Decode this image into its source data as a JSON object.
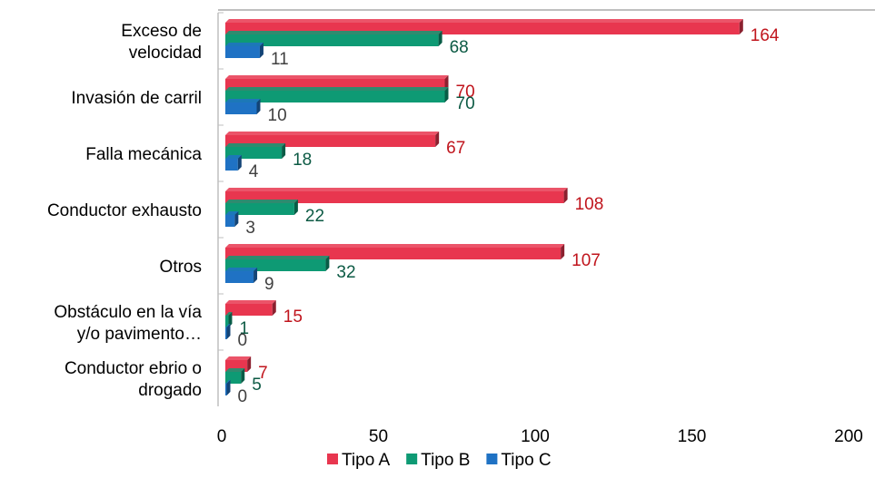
{
  "chart_data": {
    "type": "bar",
    "orientation": "horizontal",
    "categories": [
      [
        "Exceso de",
        "velocidad"
      ],
      [
        "Invasión de carril"
      ],
      [
        "Falla mecánica"
      ],
      [
        "Conductor exhausto"
      ],
      [
        "Otros"
      ],
      [
        "Obstáculo en la vía",
        "y/o pavimento…"
      ],
      [
        "Conductor ebrio o",
        "drogado"
      ]
    ],
    "series": [
      {
        "name": "Tipo A",
        "color": "#e8364f",
        "label_color": "#c0141c",
        "values": [
          164,
          70,
          67,
          108,
          107,
          15,
          7
        ]
      },
      {
        "name": "Tipo B",
        "color": "#0e9a74",
        "label_color": "#0c5a44",
        "values": [
          68,
          70,
          18,
          22,
          32,
          1,
          5
        ]
      },
      {
        "name": "Tipo C",
        "color": "#1f72c4",
        "label_color": "#404040",
        "values": [
          11,
          10,
          4,
          3,
          9,
          0,
          0
        ]
      }
    ],
    "xlim": [
      0,
      200
    ],
    "xticks": [
      0,
      50,
      100,
      150,
      200
    ],
    "grid": false,
    "legend_position": "bottom",
    "title": "",
    "xlabel": "",
    "ylabel": ""
  }
}
